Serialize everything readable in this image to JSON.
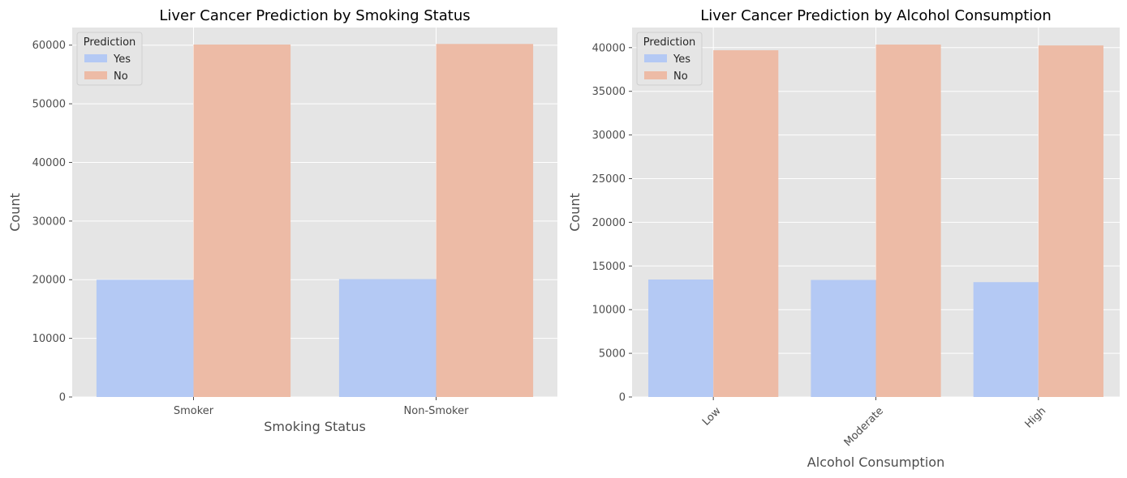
{
  "chart_data": [
    {
      "type": "bar",
      "title": "Liver Cancer Prediction by Smoking Status",
      "xlabel": "Smoking Status",
      "ylabel": "Count",
      "categories": [
        "Smoker",
        "Non-Smoker"
      ],
      "series": [
        {
          "name": "Yes",
          "values": [
            20000,
            20100
          ]
        },
        {
          "name": "No",
          "values": [
            60100,
            60200
          ]
        }
      ],
      "ylim": [
        0,
        63000
      ],
      "yticks": [
        0,
        10000,
        20000,
        30000,
        40000,
        50000,
        60000
      ],
      "legend": {
        "title": "Prediction",
        "position": "top-left"
      },
      "grid": true,
      "xtick_rotation": 0
    },
    {
      "type": "bar",
      "title": "Liver Cancer Prediction by Alcohol Consumption",
      "xlabel": "Alcohol Consumption",
      "ylabel": "Count",
      "categories": [
        "Low",
        "Moderate",
        "High"
      ],
      "series": [
        {
          "name": "Yes",
          "values": [
            13450,
            13400,
            13150
          ]
        },
        {
          "name": "No",
          "values": [
            39700,
            40350,
            40250
          ]
        }
      ],
      "ylim": [
        0,
        42300
      ],
      "yticks": [
        0,
        5000,
        10000,
        15000,
        20000,
        25000,
        30000,
        35000,
        40000
      ],
      "legend": {
        "title": "Prediction",
        "position": "top-left"
      },
      "grid": true,
      "xtick_rotation": 45
    }
  ],
  "colors": {
    "Yes": "#b4c9f4",
    "No": "#edbba6",
    "axes_bg": "#e5e5e5",
    "grid": "#ffffff",
    "text": "#4d4d4d"
  }
}
